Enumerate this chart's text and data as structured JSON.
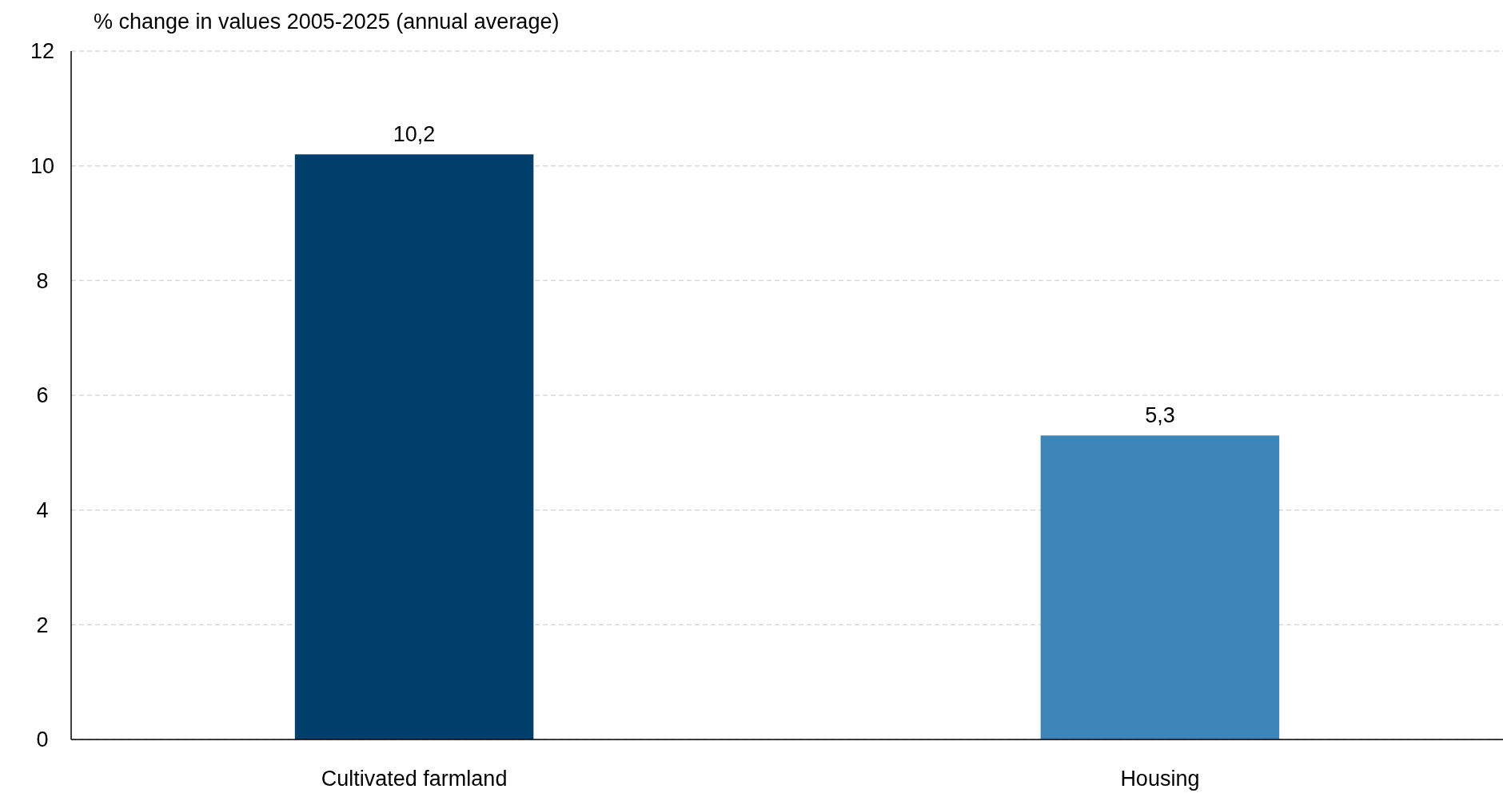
{
  "chart_data": {
    "type": "bar",
    "title": "% change in values 2005-2025 (annual average)",
    "categories": [
      "Cultivated farmland",
      "Housing"
    ],
    "values": [
      10.2,
      5.3
    ],
    "colors": [
      "#003f6b",
      "#3d85b8"
    ],
    "value_labels": [
      "10,2",
      "5,3"
    ],
    "ylim": [
      0,
      12
    ],
    "yticks": [
      0,
      2,
      4,
      6,
      8,
      10,
      12
    ],
    "grid": "y"
  }
}
